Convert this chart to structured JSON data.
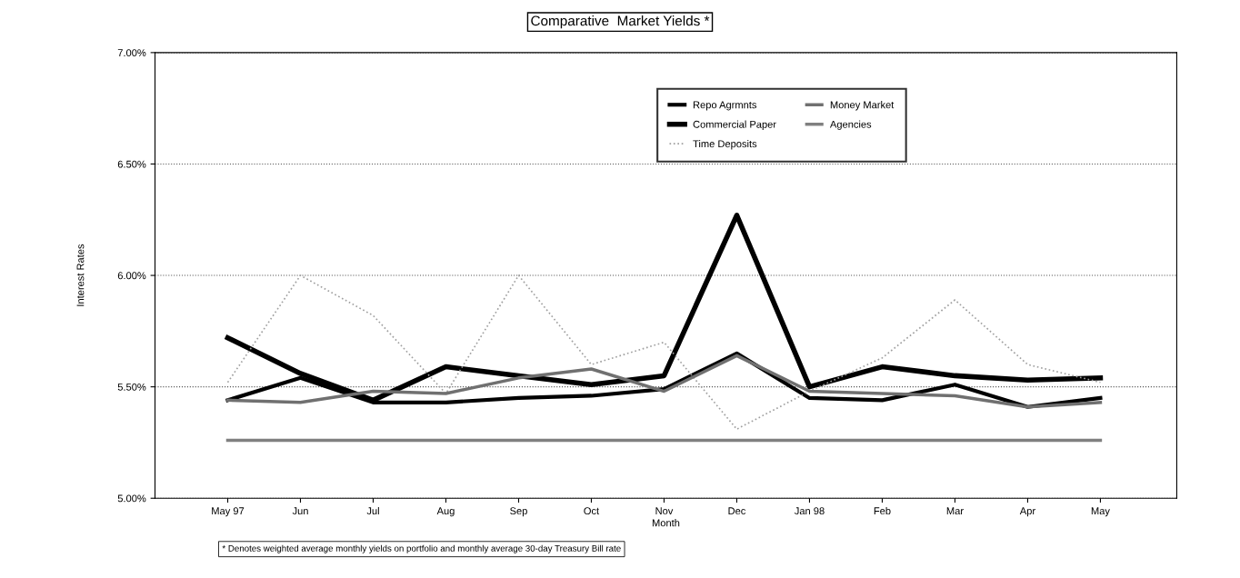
{
  "chart_data": {
    "type": "line",
    "title": "Comparative  Market Yields *",
    "xlabel": "Month",
    "ylabel": "Interest Rates",
    "categories": [
      "May 97",
      "Jun",
      "Jul",
      "Aug",
      "Sep",
      "Oct",
      "Nov",
      "Dec",
      "Jan 98",
      "Feb",
      "Mar",
      "Apr",
      "May"
    ],
    "series": [
      {
        "name": "Repo Agrmnts",
        "color": "#000000",
        "values": [
          5.44,
          5.54,
          5.43,
          5.43,
          5.45,
          5.46,
          5.49,
          5.65,
          5.45,
          5.44,
          5.51,
          5.41,
          5.45
        ]
      },
      {
        "name": "Commercial Paper",
        "color": "#000000",
        "values": [
          5.72,
          5.56,
          5.44,
          5.59,
          5.55,
          5.51,
          5.55,
          6.27,
          5.5,
          5.59,
          5.55,
          5.53,
          5.54
        ]
      },
      {
        "name": "Time Deposits",
        "color": "#a0a0a0",
        "line_style": "dotted",
        "values": [
          5.52,
          6.0,
          5.82,
          5.47,
          6.0,
          5.6,
          5.7,
          5.31,
          5.48,
          5.63,
          5.89,
          5.6,
          5.52
        ]
      },
      {
        "name": "Money Market",
        "color": "#707070",
        "values": [
          5.44,
          5.43,
          5.48,
          5.47,
          5.54,
          5.58,
          5.48,
          5.64,
          5.48,
          5.47,
          5.46,
          5.41,
          5.43
        ]
      },
      {
        "name": "Agencies",
        "color": "#808080",
        "values": [
          5.26,
          5.26,
          5.26,
          5.26,
          5.26,
          5.26,
          5.26,
          5.26,
          5.26,
          5.26,
          5.26,
          5.26,
          5.26
        ]
      }
    ],
    "ylim": [
      5,
      7
    ],
    "yticks": [
      {
        "value": 5,
        "label": "5.00%"
      },
      {
        "value": 5.5,
        "label": "5.50%"
      },
      {
        "value": 6,
        "label": "6.00%"
      },
      {
        "value": 6.5,
        "label": "6.50%"
      },
      {
        "value": 7,
        "label": "7.00%"
      }
    ],
    "grid": "y",
    "legend": "top right",
    "line_style": "solid",
    "marker": "none",
    "annotations": [
      "* Denotes weighted average monthly yields on portfolio and monthly average 30-day Treasury Bill rate"
    ]
  }
}
